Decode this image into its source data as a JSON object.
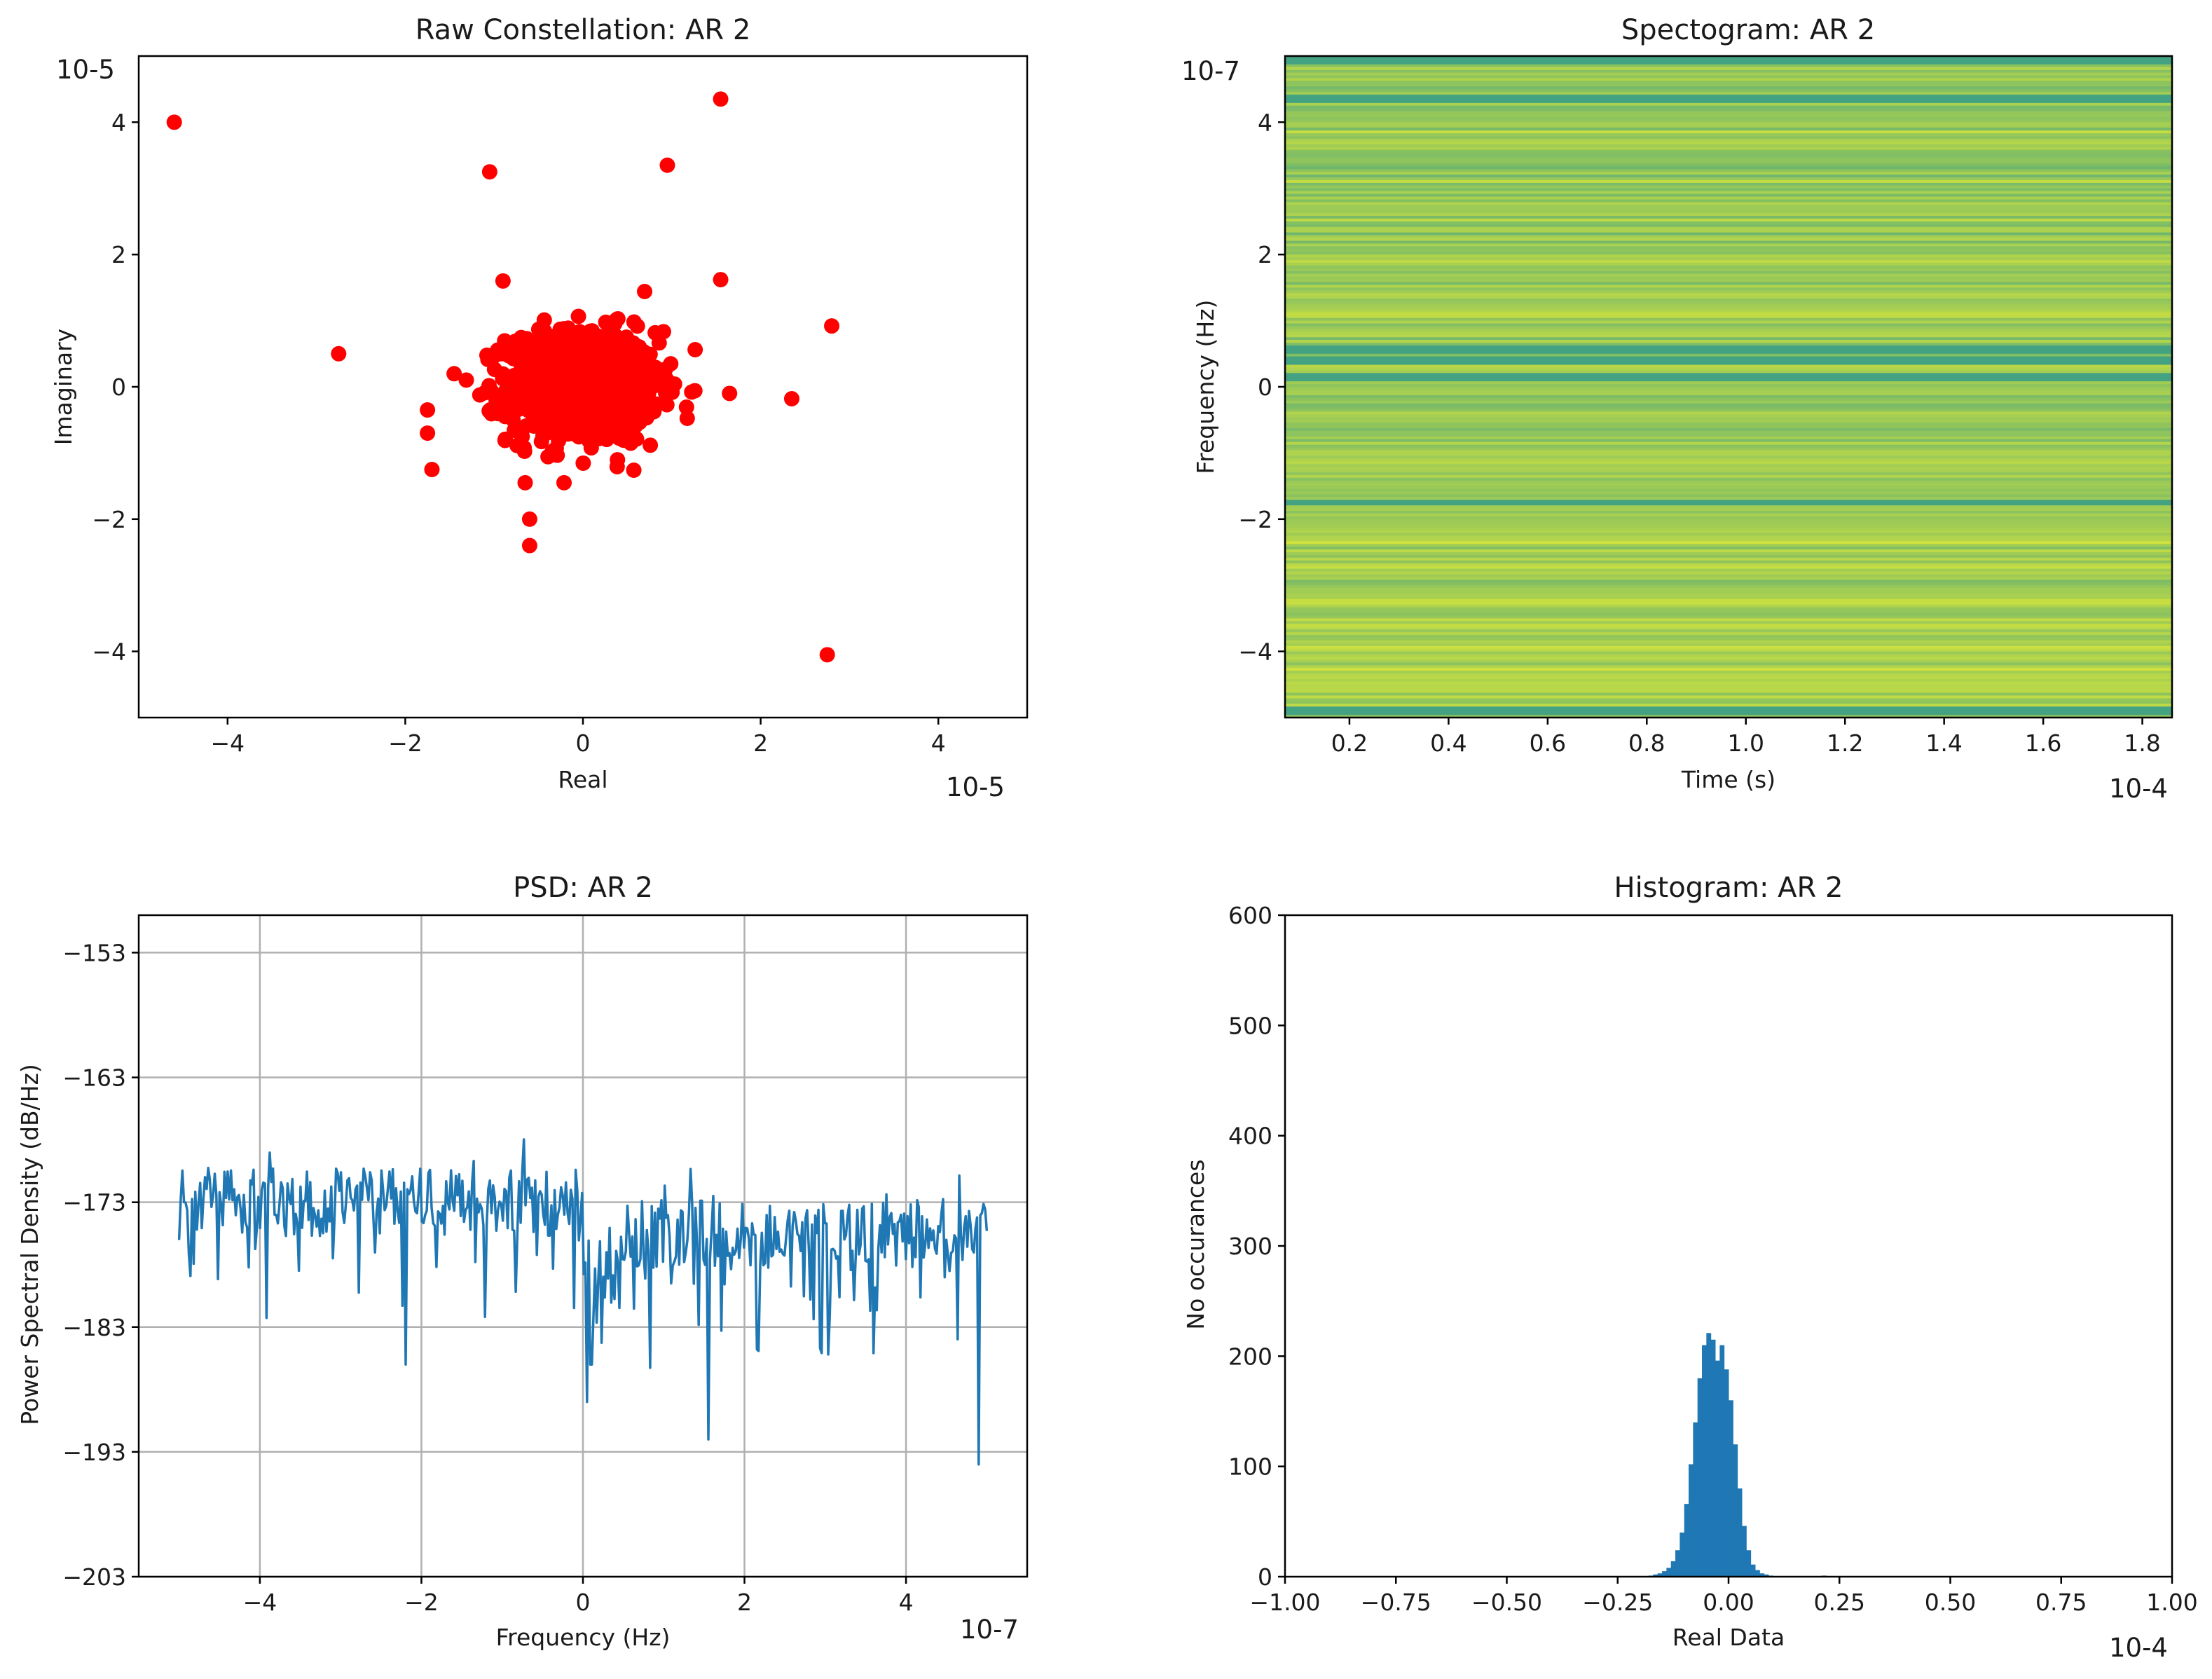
{
  "colors": {
    "scatter": "#ff0000",
    "line": "#1f77b4",
    "bar": "#1f77b4",
    "grid": "#b0b0b0",
    "spec_low": "#3b9e86",
    "spec_high": "#d7e53a"
  },
  "chart_data": [
    {
      "id": "constellation",
      "type": "scatter",
      "title": "Raw Constellation: AR 2",
      "xlabel": "Real",
      "ylabel": "Imaginary",
      "x_multiplier": "10-5",
      "y_multiplier": "10-5",
      "xlim": [
        -5,
        5
      ],
      "ylim": [
        -5,
        5
      ],
      "xticks": [
        -4,
        -2,
        0,
        2,
        4
      ],
      "xtick_labels": [
        "−4",
        "−2",
        "0",
        "2",
        "4"
      ],
      "yticks": [
        -4,
        -2,
        0,
        2,
        4
      ],
      "ytick_labels": [
        "−4",
        "−2",
        "0",
        "2",
        "4"
      ],
      "outliers": [
        [
          -4.6,
          4.0
        ],
        [
          1.55,
          4.35
        ],
        [
          -1.05,
          3.25
        ],
        [
          0.95,
          3.35
        ],
        [
          -2.75,
          0.5
        ],
        [
          2.8,
          0.92
        ],
        [
          2.35,
          -0.18
        ],
        [
          1.55,
          1.62
        ],
        [
          -0.6,
          -2.0
        ],
        [
          -0.6,
          -2.4
        ],
        [
          2.75,
          -4.05
        ],
        [
          -0.9,
          1.6
        ],
        [
          -1.7,
          -1.25
        ],
        [
          -1.75,
          -0.7
        ],
        [
          -1.75,
          -0.35
        ],
        [
          1.65,
          -0.1
        ]
      ],
      "cluster_center": [
        0,
        0
      ],
      "cluster_std": [
        0.42,
        0.42
      ],
      "cluster_count": 1100
    },
    {
      "id": "spectrogram",
      "type": "heatmap",
      "title": "Spectogram: AR 2",
      "xlabel": "Time (s)",
      "ylabel": "Frequency (Hz)",
      "x_multiplier": "10-4",
      "y_multiplier": "10-7",
      "xlim": [
        0.07,
        1.86
      ],
      "ylim": [
        -5,
        5
      ],
      "xticks": [
        0.2,
        0.4,
        0.6,
        0.8,
        1.0,
        1.2,
        1.4,
        1.6,
        1.8
      ],
      "xtick_labels": [
        "0.2",
        "0.4",
        "0.6",
        "0.8",
        "1.0",
        "1.2",
        "1.4",
        "1.6",
        "1.8"
      ],
      "yticks": [
        -4,
        -2,
        0,
        2,
        4
      ],
      "ytick_labels": [
        "−4",
        "−2",
        "0",
        "2",
        "4"
      ],
      "rows": 240,
      "dark_bands": [
        -4.9,
        -1.75,
        0.15,
        0.4,
        0.55,
        4.35,
        4.95
      ]
    },
    {
      "id": "psd",
      "type": "line",
      "title": "PSD: AR 2",
      "xlabel": "Frequency (Hz)",
      "ylabel": "Power Spectral Density (dB/Hz)",
      "x_multiplier": "10-7",
      "xlim": [
        -5.5,
        5.5
      ],
      "ylim": [
        -203,
        -150
      ],
      "xticks": [
        -4,
        -2,
        0,
        2,
        4
      ],
      "xtick_labels": [
        "−4",
        "−2",
        "0",
        "2",
        "4"
      ],
      "yticks": [
        -203,
        -193,
        -183,
        -173,
        -163,
        -153
      ],
      "ytick_labels": [
        "−203",
        "−193",
        "−183",
        "−173",
        "−163",
        "−153"
      ],
      "grid": true,
      "x_range": [
        -5,
        5
      ],
      "points": 500,
      "mean_left": -173,
      "mean_right": -175.5,
      "deep_dips": [
        [
          0.1,
          -186
        ],
        [
          1.55,
          -192
        ],
        [
          4.9,
          -194
        ],
        [
          0.05,
          -189
        ],
        [
          -2.2,
          -186
        ]
      ]
    },
    {
      "id": "histogram",
      "type": "bar",
      "title": "Histogram: AR 2",
      "xlabel": "Real Data",
      "ylabel": "No occurances",
      "x_multiplier": "10-4",
      "xlim": [
        -1.0,
        1.0
      ],
      "ylim": [
        0,
        600
      ],
      "xticks": [
        -1.0,
        -0.75,
        -0.5,
        -0.25,
        0.0,
        0.25,
        0.5,
        0.75,
        1.0
      ],
      "xtick_labels": [
        "−1.00",
        "−0.75",
        "−0.50",
        "−0.25",
        "0.00",
        "0.25",
        "0.50",
        "0.75",
        "1.00"
      ],
      "yticks": [
        0,
        100,
        200,
        300,
        400,
        500,
        600
      ],
      "ytick_labels": [
        "0",
        "100",
        "200",
        "300",
        "400",
        "500",
        "600"
      ],
      "bin_start": -0.18,
      "bin_width": 0.01,
      "counts": [
        1,
        2,
        3,
        5,
        8,
        14,
        24,
        40,
        66,
        102,
        140,
        180,
        210,
        221,
        215,
        196,
        210,
        188,
        160,
        120,
        80,
        46,
        24,
        11,
        6,
        3,
        2,
        1,
        0,
        0,
        0,
        0,
        0,
        0,
        0,
        0,
        0,
        0,
        0,
        1
      ]
    }
  ]
}
